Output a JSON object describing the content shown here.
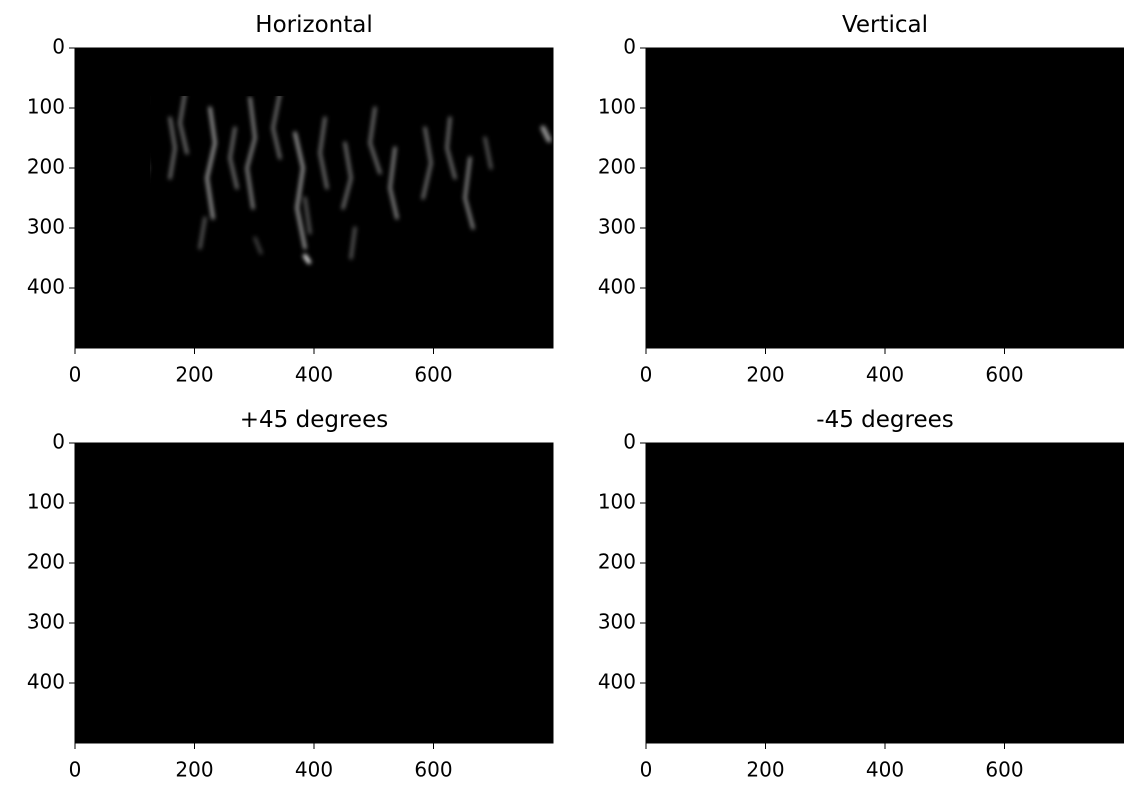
{
  "chart_data": [
    {
      "type": "image",
      "title": "Horizontal",
      "xlim": [
        0,
        800
      ],
      "ylim": [
        500,
        0
      ],
      "xticks": [
        0,
        200,
        400,
        600
      ],
      "yticks": [
        0,
        100,
        200,
        300,
        400
      ]
    },
    {
      "type": "image",
      "title": "Vertical",
      "xlim": [
        0,
        800
      ],
      "ylim": [
        500,
        0
      ],
      "xticks": [
        0,
        200,
        400,
        600
      ],
      "yticks": [
        0,
        100,
        200,
        300,
        400
      ]
    },
    {
      "type": "image",
      "title": "+45 degrees",
      "xlim": [
        0,
        800
      ],
      "ylim": [
        500,
        0
      ],
      "xticks": [
        0,
        200,
        400,
        600
      ],
      "yticks": [
        0,
        100,
        200,
        300,
        400
      ]
    },
    {
      "type": "image",
      "title": "-45 degrees",
      "xlim": [
        0,
        800
      ],
      "ylim": [
        500,
        0
      ],
      "xticks": [
        0,
        200,
        400,
        600
      ],
      "yticks": [
        0,
        100,
        200,
        300,
        400
      ]
    }
  ]
}
